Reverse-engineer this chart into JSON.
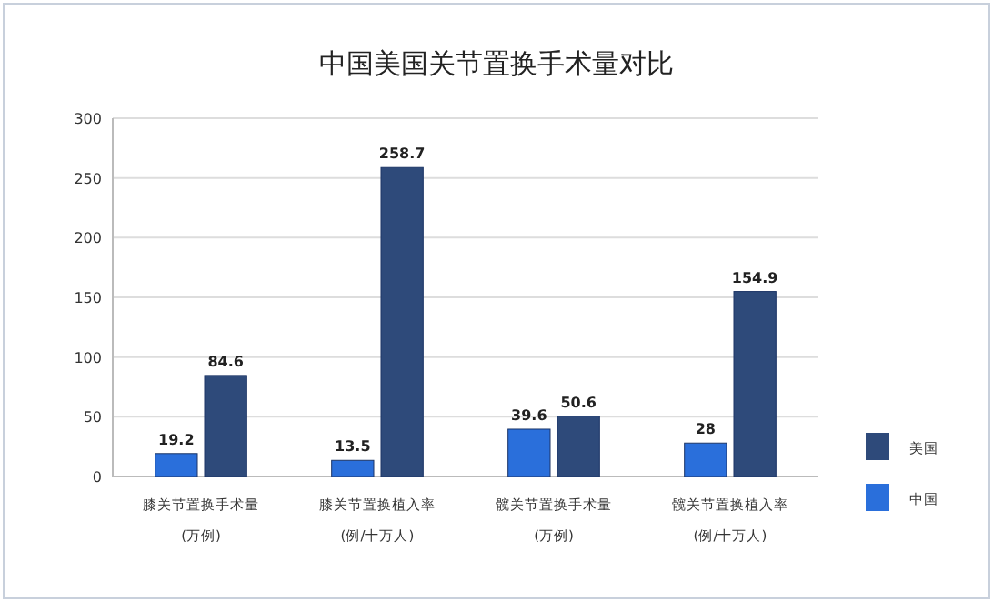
{
  "chart_data": {
    "type": "bar",
    "title": "中国美国关节置换手术量对比",
    "categories": [
      "膝关节置换手术量\n(万例)",
      "膝关节置换植入率\n(例/十万人)",
      "髋关节置换手术量\n(万例)",
      "髋关节置换植入率\n(例/十万人)"
    ],
    "series": [
      {
        "name": "中国",
        "color": "#2a6fdb",
        "values": [
          19.2,
          13.5,
          39.6,
          28
        ]
      },
      {
        "name": "美国",
        "color": "#2e4a7a",
        "values": [
          84.6,
          258.7,
          50.6,
          154.9
        ]
      }
    ],
    "ylim": [
      0,
      300
    ],
    "yticks": [
      0,
      50,
      100,
      150,
      200,
      250,
      300
    ],
    "grid": "y",
    "legend": "right",
    "data_labels": true
  }
}
